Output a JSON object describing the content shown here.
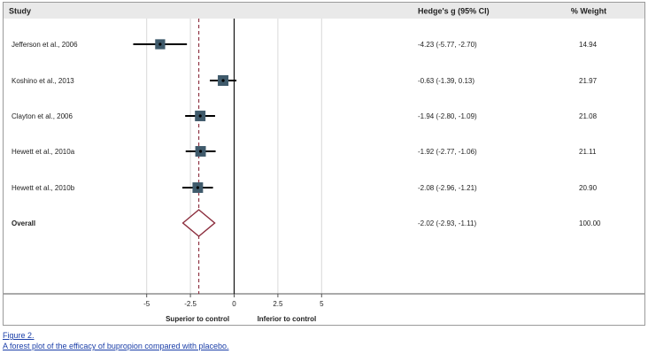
{
  "chart_data": {
    "type": "forest",
    "headers": {
      "study": "Study",
      "effect": "Hedge's g (95% CI)",
      "weight": "% Weight"
    },
    "studies": [
      {
        "name": "Jefferson et al., 2006",
        "estimate": -4.23,
        "lower": -5.77,
        "upper": -2.7,
        "ci_text": "-4.23 (-5.77, -2.70)",
        "weight": 14.94,
        "weight_text": "14.94"
      },
      {
        "name": "Koshino et al., 2013",
        "estimate": -0.63,
        "lower": -1.39,
        "upper": 0.13,
        "ci_text": "-0.63 (-1.39, 0.13)",
        "weight": 21.97,
        "weight_text": "21.97"
      },
      {
        "name": "Clayton et al., 2006",
        "estimate": -1.94,
        "lower": -2.8,
        "upper": -1.09,
        "ci_text": "-1.94 (-2.80, -1.09)",
        "weight": 21.08,
        "weight_text": "21.08"
      },
      {
        "name": "Hewett et al., 2010a",
        "estimate": -1.92,
        "lower": -2.77,
        "upper": -1.06,
        "ci_text": "-1.92 (-2.77, -1.06)",
        "weight": 21.11,
        "weight_text": "21.11"
      },
      {
        "name": "Hewett et al., 2010b",
        "estimate": -2.08,
        "lower": -2.96,
        "upper": -1.21,
        "ci_text": "-2.08 (-2.96, -1.21)",
        "weight": 20.9,
        "weight_text": "20.90"
      }
    ],
    "overall": {
      "name": "Overall",
      "estimate": -2.02,
      "lower": -2.93,
      "upper": -1.11,
      "ci_text": "-2.02 (-2.93, -1.11)",
      "weight_text": "100.00"
    },
    "x_ticks": [
      -5,
      -2.5,
      0,
      2.5,
      5
    ],
    "x_tick_labels": [
      "-5",
      "-2.5",
      "0",
      "2.5",
      "5"
    ],
    "xlim": [
      -6.25,
      6.25
    ],
    "null_line": 0,
    "direction_labels": {
      "left": "Superior to control",
      "right": "Inferior to control"
    },
    "gridlines": true,
    "colors": {
      "study_square": "#3f5a6b",
      "ci_line": "#000000",
      "overall_diamond": "#8b2c3c",
      "overall_line": "#8b2c3c",
      "grid": "#d8d8d8",
      "header_bg": "#e9e9e9"
    }
  },
  "caption": {
    "label": "Figure 2.",
    "text": "A forest plot of the efficacy of bupropion compared with placebo."
  }
}
